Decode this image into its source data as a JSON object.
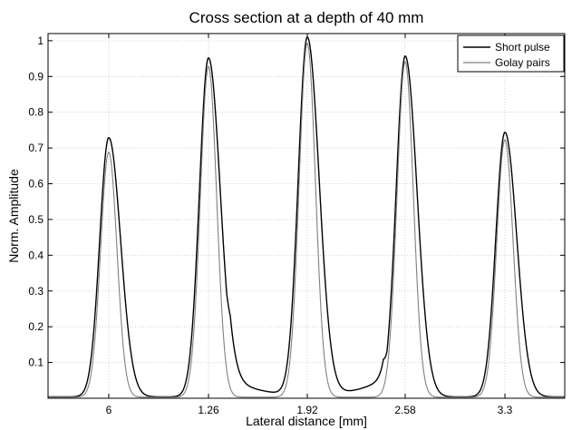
{
  "chart_data": {
    "type": "line",
    "title": "Cross section at a depth of 40 mm",
    "xlabel": "Lateral distance [mm]",
    "ylabel": "Norm. Amplitude",
    "x_ticks": [
      "6",
      "1.26",
      "1.92",
      "2.58",
      "3.3"
    ],
    "y_ticks": [
      "0.1",
      "0.2",
      "0.3",
      "0.4",
      "0.5",
      "0.6",
      "0.7",
      "0.8",
      "0.9",
      "1"
    ],
    "ylim": [
      0,
      1.02
    ],
    "grid": true,
    "legend_position": "top-right",
    "series": [
      {
        "name": "Short pulse",
        "color": "#000000",
        "peaks": [
          {
            "x_tick": "6",
            "amplitude": 0.725
          },
          {
            "x_tick": "1.26",
            "amplitude": 0.948
          },
          {
            "x_tick": "1.92",
            "amplitude": 1.0
          },
          {
            "x_tick": "2.58",
            "amplitude": 0.953
          },
          {
            "x_tick": "3.3",
            "amplitude": 0.74
          }
        ],
        "sidelobes": [
          {
            "after_tick": "1.26",
            "amplitude": 0.055
          },
          {
            "before_tick": "2.58",
            "amplitude": 0.052
          }
        ]
      },
      {
        "name": "Golay pairs",
        "color": "#808080",
        "peaks": [
          {
            "x_tick": "6",
            "amplitude": 0.685
          },
          {
            "x_tick": "1.26",
            "amplitude": 0.925
          },
          {
            "x_tick": "1.92",
            "amplitude": 0.99
          },
          {
            "x_tick": "2.58",
            "amplitude": 0.938
          },
          {
            "x_tick": "3.3",
            "amplitude": 0.72
          }
        ]
      }
    ]
  }
}
